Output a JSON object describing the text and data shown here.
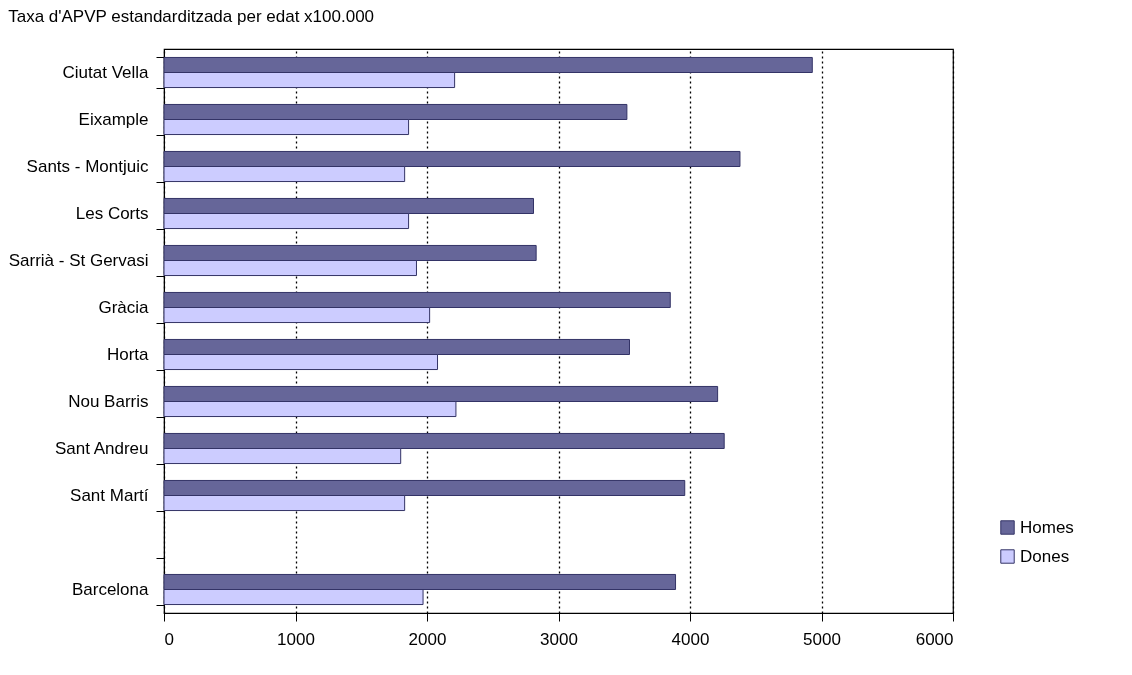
{
  "chart_data": {
    "type": "bar",
    "orientation": "horizontal",
    "title": "Taxa d'APVP estandarditzada per edat x100.000",
    "categories": [
      "Ciutat Vella",
      "Eixample",
      "Sants - Montjuic",
      "Les Corts",
      "Sarrià - St Gervasi",
      "Gràcia",
      "Horta",
      "Nou Barris",
      "Sant Andreu",
      "Sant Martí",
      null,
      "Barcelona"
    ],
    "series": [
      {
        "name": "Homes",
        "color": "#666699",
        "values": [
          4930,
          3520,
          4380,
          2810,
          2830,
          3850,
          3540,
          4210,
          4260,
          3960,
          null,
          3890
        ]
      },
      {
        "name": "Dones",
        "color": "#ccccff",
        "values": [
          2210,
          1860,
          1830,
          1860,
          1920,
          2020,
          2080,
          2220,
          1800,
          1830,
          null,
          1970
        ]
      }
    ],
    "xlim": [
      0,
      6000
    ],
    "xticks": [
      0,
      1000,
      2000,
      3000,
      4000,
      5000,
      6000
    ],
    "grid": "x",
    "legend": "bottom right"
  }
}
